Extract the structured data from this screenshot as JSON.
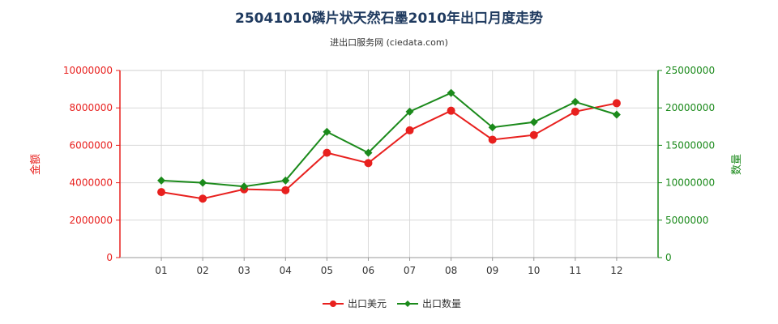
{
  "title": "25041010磷片状天然石墨2010年出口月度走势",
  "subtitle": "进出口服务网 (ciedata.com)",
  "chart_data": {
    "type": "line",
    "categories": [
      "01",
      "02",
      "03",
      "04",
      "05",
      "06",
      "07",
      "08",
      "09",
      "10",
      "11",
      "12"
    ],
    "series": [
      {
        "name": "出口美元",
        "axis": "left",
        "color": "#e8201e",
        "marker": "circle",
        "values": [
          3500000,
          3150000,
          3650000,
          3600000,
          5600000,
          5050000,
          6800000,
          7850000,
          6300000,
          6550000,
          7800000,
          8250000
        ]
      },
      {
        "name": "出口数量",
        "axis": "right",
        "color": "#1b8a1b",
        "marker": "diamond",
        "values": [
          10300000,
          10000000,
          9500000,
          10300000,
          16800000,
          14000000,
          19500000,
          22000000,
          17400000,
          18100000,
          20800000,
          19100000
        ]
      }
    ],
    "y_left": {
      "label": "金额",
      "color": "#e8201e",
      "range": [
        0,
        10000000
      ],
      "ticks": [
        "0",
        "2000000",
        "4000000",
        "6000000",
        "8000000",
        "10000000"
      ]
    },
    "y_right": {
      "label": "数量",
      "color": "#1b8a1b",
      "range": [
        0,
        25000000
      ],
      "ticks": [
        "0",
        "5000000",
        "10000000",
        "15000000",
        "20000000",
        "25000000"
      ]
    },
    "grid": true,
    "legend_position": "bottom-center"
  }
}
